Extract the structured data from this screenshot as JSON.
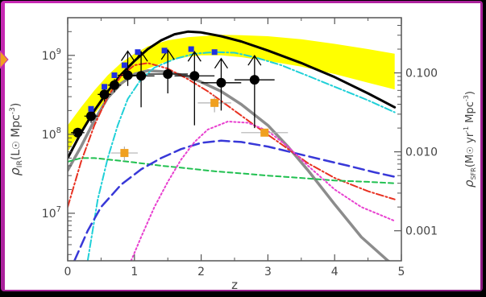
{
  "chart_data": {
    "type": "line",
    "xlabel": "z",
    "ylabel_left": "ρ_IR (L⊙ Mpc⁻³)",
    "ylabel_left_parts": {
      "rho": "ρ",
      "sub": "IR",
      "unit": "(L",
      "unit2": " Mpc",
      "exp": "-3",
      "close": ")"
    },
    "ylabel_right": "ρ_SFR (M⊙ yr⁻¹ Mpc⁻³)",
    "ylabel_right_parts": {
      "rho": "ρ",
      "sub": "SFR",
      "unit": "(M",
      "unit2": " yr",
      "exp1": "-1",
      "unit3": " Mpc",
      "exp2": "-3",
      "close": ")"
    },
    "xlim": [
      0,
      5
    ],
    "ylim": [
      2500000.0,
      3000000000.0
    ],
    "yscale": "log",
    "x_ticks": [
      {
        "value": 0,
        "label": "0"
      },
      {
        "value": 1,
        "label": "1"
      },
      {
        "value": 2,
        "label": "2"
      },
      {
        "value": 3,
        "label": "3"
      },
      {
        "value": 4,
        "label": "4"
      },
      {
        "value": 5,
        "label": "5"
      }
    ],
    "y_ticks_left": [
      {
        "value": 10000000.0,
        "base": "10",
        "exp": "7"
      },
      {
        "value": 100000000.0,
        "base": "10",
        "exp": "8"
      },
      {
        "value": 1000000000.0,
        "base": "10",
        "exp": "9"
      }
    ],
    "y_ticks_right": [
      {
        "value": 0.001,
        "label": "0.001",
        "y_equiv": 6000000.0
      },
      {
        "value": 0.01,
        "label": "0.010",
        "y_equiv": 60000000.0
      },
      {
        "value": 0.1,
        "label": "0.100",
        "y_equiv": 600000000.0
      }
    ],
    "band": {
      "color": "#ffff00",
      "x": [
        0.0,
        0.2,
        0.4,
        0.6,
        0.8,
        1.0,
        1.2,
        1.5,
        1.8,
        2.0,
        2.3,
        2.6,
        3.0,
        3.5,
        4.0,
        4.5,
        4.9
      ],
      "upper": [
        130000000.0,
        220000000.0,
        360000000.0,
        560000000.0,
        800000000.0,
        1050000000.0,
        1300000000.0,
        1550000000.0,
        1700000000.0,
        1750000000.0,
        1820000000.0,
        1800000000.0,
        1750000000.0,
        1600000000.0,
        1400000000.0,
        1200000000.0,
        1050000000.0
      ],
      "lower": [
        60000000.0,
        110000000.0,
        180000000.0,
        290000000.0,
        420000000.0,
        550000000.0,
        680000000.0,
        850000000.0,
        960000000.0,
        1000000000.0,
        1000000000.0,
        950000000.0,
        850000000.0,
        720000000.0,
        580000000.0,
        450000000.0,
        370000000.0
      ]
    },
    "series": [
      {
        "id": "black-solid",
        "color": "#000000",
        "dash": "",
        "width": 3,
        "x": [
          0.0,
          0.2,
          0.4,
          0.6,
          0.8,
          1.0,
          1.2,
          1.4,
          1.6,
          1.8,
          2.0,
          2.3,
          2.6,
          3.0,
          3.5,
          4.0,
          4.5,
          4.9
        ],
        "y": [
          50000000.0,
          105000000.0,
          200000000.0,
          350000000.0,
          570000000.0,
          850000000.0,
          1200000000.0,
          1550000000.0,
          1850000000.0,
          2000000000.0,
          1950000000.0,
          1750000000.0,
          1500000000.0,
          1150000000.0,
          800000000.0,
          530000000.0,
          330000000.0,
          220000000.0
        ]
      },
      {
        "id": "gray-solid",
        "color": "#8c8c8c",
        "dash": "",
        "width": 3.5,
        "x": [
          0.0,
          0.2,
          0.4,
          0.6,
          0.8,
          1.0,
          1.2,
          1.5,
          1.8,
          2.0,
          2.3,
          2.6,
          3.0,
          3.3,
          3.6,
          4.0,
          4.4,
          4.8,
          4.9
        ],
        "y": [
          35000000.0,
          70000000.0,
          150000000.0,
          290000000.0,
          440000000.0,
          580000000.0,
          640000000.0,
          620000000.0,
          540000000.0,
          460000000.0,
          350000000.0,
          240000000.0,
          130000000.0,
          70000000.0,
          35000000.0,
          13000000.0,
          5000000.0,
          2500000.0,
          2200000.0
        ]
      },
      {
        "id": "red-dashdot",
        "color": "#e83020",
        "dash": "9,3,2,3",
        "width": 2,
        "x": [
          0.0,
          0.2,
          0.4,
          0.6,
          0.8,
          1.0,
          1.2,
          1.5,
          1.8,
          2.1,
          2.4,
          2.8,
          3.2,
          3.6,
          4.0,
          4.5,
          4.9
        ],
        "y": [
          12000000.0,
          45000000.0,
          130000000.0,
          300000000.0,
          550000000.0,
          750000000.0,
          800000000.0,
          680000000.0,
          500000000.0,
          350000000.0,
          230000000.0,
          130000000.0,
          75000000.0,
          43000000.0,
          28000000.0,
          19000000.0,
          15000000.0
        ]
      },
      {
        "id": "cyan-dashdot",
        "color": "#20d0d8",
        "dash": "9,3,2,3",
        "width": 2,
        "x": [
          0.3,
          0.45,
          0.6,
          0.75,
          0.9,
          1.1,
          1.3,
          1.6,
          1.9,
          2.2,
          2.5,
          2.8,
          3.2,
          3.6,
          4.0,
          4.5,
          4.9
        ],
        "y": [
          2500000.0,
          15000000.0,
          50000000.0,
          130000000.0,
          280000000.0,
          500000000.0,
          700000000.0,
          900000000.0,
          1050000000.0,
          1100000000.0,
          1080000000.0,
          950000000.0,
          750000000.0,
          550000000.0,
          400000000.0,
          270000000.0,
          190000000.0
        ]
      },
      {
        "id": "green-dashed",
        "color": "#20c050",
        "dash": "6,4",
        "width": 2,
        "x": [
          0.0,
          0.2,
          0.4,
          0.6,
          0.8,
          1.0,
          1.4,
          1.8,
          2.2,
          2.6,
          3.0,
          3.5,
          4.0,
          4.5,
          4.9
        ],
        "y": [
          45000000.0,
          50000000.0,
          50000000.0,
          48000000.0,
          46000000.0,
          44000000.0,
          40000000.0,
          37000000.0,
          34000000.0,
          32000000.0,
          30000000.0,
          28000000.0,
          26000000.0,
          25000000.0,
          24000000.0
        ]
      },
      {
        "id": "blue-dashed",
        "color": "#3838d8",
        "dash": "13,6",
        "width": 2.5,
        "x": [
          0.1,
          0.3,
          0.5,
          0.8,
          1.1,
          1.4,
          1.7,
          2.0,
          2.3,
          2.6,
          3.0,
          3.4,
          3.8,
          4.2,
          4.6,
          4.9
        ],
        "y": [
          2500000.0,
          6000000.0,
          12000000.0,
          23000000.0,
          36000000.0,
          50000000.0,
          65000000.0,
          78000000.0,
          83000000.0,
          80000000.0,
          70000000.0,
          58000000.0,
          48000000.0,
          40000000.0,
          33000000.0,
          29000000.0
        ]
      },
      {
        "id": "magenta-dotted",
        "color": "#e840d0",
        "dash": "2,3",
        "width": 2,
        "x": [
          0.95,
          1.1,
          1.3,
          1.5,
          1.7,
          1.9,
          2.1,
          2.4,
          2.7,
          3.0,
          3.3,
          3.6,
          4.0,
          4.4,
          4.9
        ],
        "y": [
          2500000.0,
          5000000.0,
          12000000.0,
          25000000.0,
          48000000.0,
          80000000.0,
          115000000.0,
          145000000.0,
          140000000.0,
          110000000.0,
          70000000.0,
          40000000.0,
          20000000.0,
          12000000.0,
          8000000.0
        ]
      }
    ],
    "points_black_circles": [
      {
        "x": 0.15,
        "y": 105000000.0,
        "xerr": 0.1,
        "yerr_lo": 15000000.0,
        "yerr_hi": 15000000.0,
        "lower_limit": false
      },
      {
        "x": 0.35,
        "y": 170000000.0,
        "xerr": 0.1,
        "yerr_lo": 30000000.0,
        "yerr_hi": 30000000.0,
        "lower_limit": false
      },
      {
        "x": 0.55,
        "y": 320000000.0,
        "xerr": 0.1,
        "yerr_lo": 60000000.0,
        "yerr_hi": 60000000.0,
        "lower_limit": false
      },
      {
        "x": 0.7,
        "y": 420000000.0,
        "xerr": 0.1,
        "yerr_lo": 80000000.0,
        "yerr_hi": 80000000.0,
        "lower_limit": false
      },
      {
        "x": 0.9,
        "y": 560000000.0,
        "xerr": 0.15,
        "yerr_lo": 150000000.0,
        "yerr_hi": 150000000.0,
        "lower_limit": true
      },
      {
        "x": 1.1,
        "y": 550000000.0,
        "xerr": 0.2,
        "yerr_lo": 330000000.0,
        "yerr_hi": 0,
        "lower_limit": true
      },
      {
        "x": 1.5,
        "y": 580000000.0,
        "xerr": 0.3,
        "yerr_lo": 250000000.0,
        "yerr_hi": 0,
        "lower_limit": true
      },
      {
        "x": 1.9,
        "y": 550000000.0,
        "xerr": 0.3,
        "yerr_lo": 420000000.0,
        "yerr_hi": 0,
        "lower_limit": true
      },
      {
        "x": 2.3,
        "y": 450000000.0,
        "xerr": 0.3,
        "yerr_lo": 250000000.0,
        "yerr_hi": 0,
        "lower_limit": true
      },
      {
        "x": 2.8,
        "y": 490000000.0,
        "xerr": 0.3,
        "yerr_lo": 370000000.0,
        "yerr_hi": 0,
        "lower_limit": true
      }
    ],
    "points_blue_squares": [
      {
        "x": 0.35,
        "y": 210000000.0
      },
      {
        "x": 0.55,
        "y": 400000000.0
      },
      {
        "x": 0.7,
        "y": 560000000.0
      },
      {
        "x": 0.85,
        "y": 750000000.0
      },
      {
        "x": 1.05,
        "y": 1100000000.0
      },
      {
        "x": 1.45,
        "y": 1150000000.0
      },
      {
        "x": 1.85,
        "y": 1200000000.0
      },
      {
        "x": 2.2,
        "y": 1100000000.0
      }
    ],
    "points_orange_squares": [
      {
        "x": 0.85,
        "y": 58000000.0,
        "xerr": 0.2,
        "yerr": 12000000.0
      },
      {
        "x": 2.2,
        "y": 250000000.0,
        "xerr": 0.25,
        "yerr": 60000000.0
      },
      {
        "x": 2.95,
        "y": 105000000.0,
        "xerr": 0.35,
        "yerr": 0
      }
    ]
  }
}
